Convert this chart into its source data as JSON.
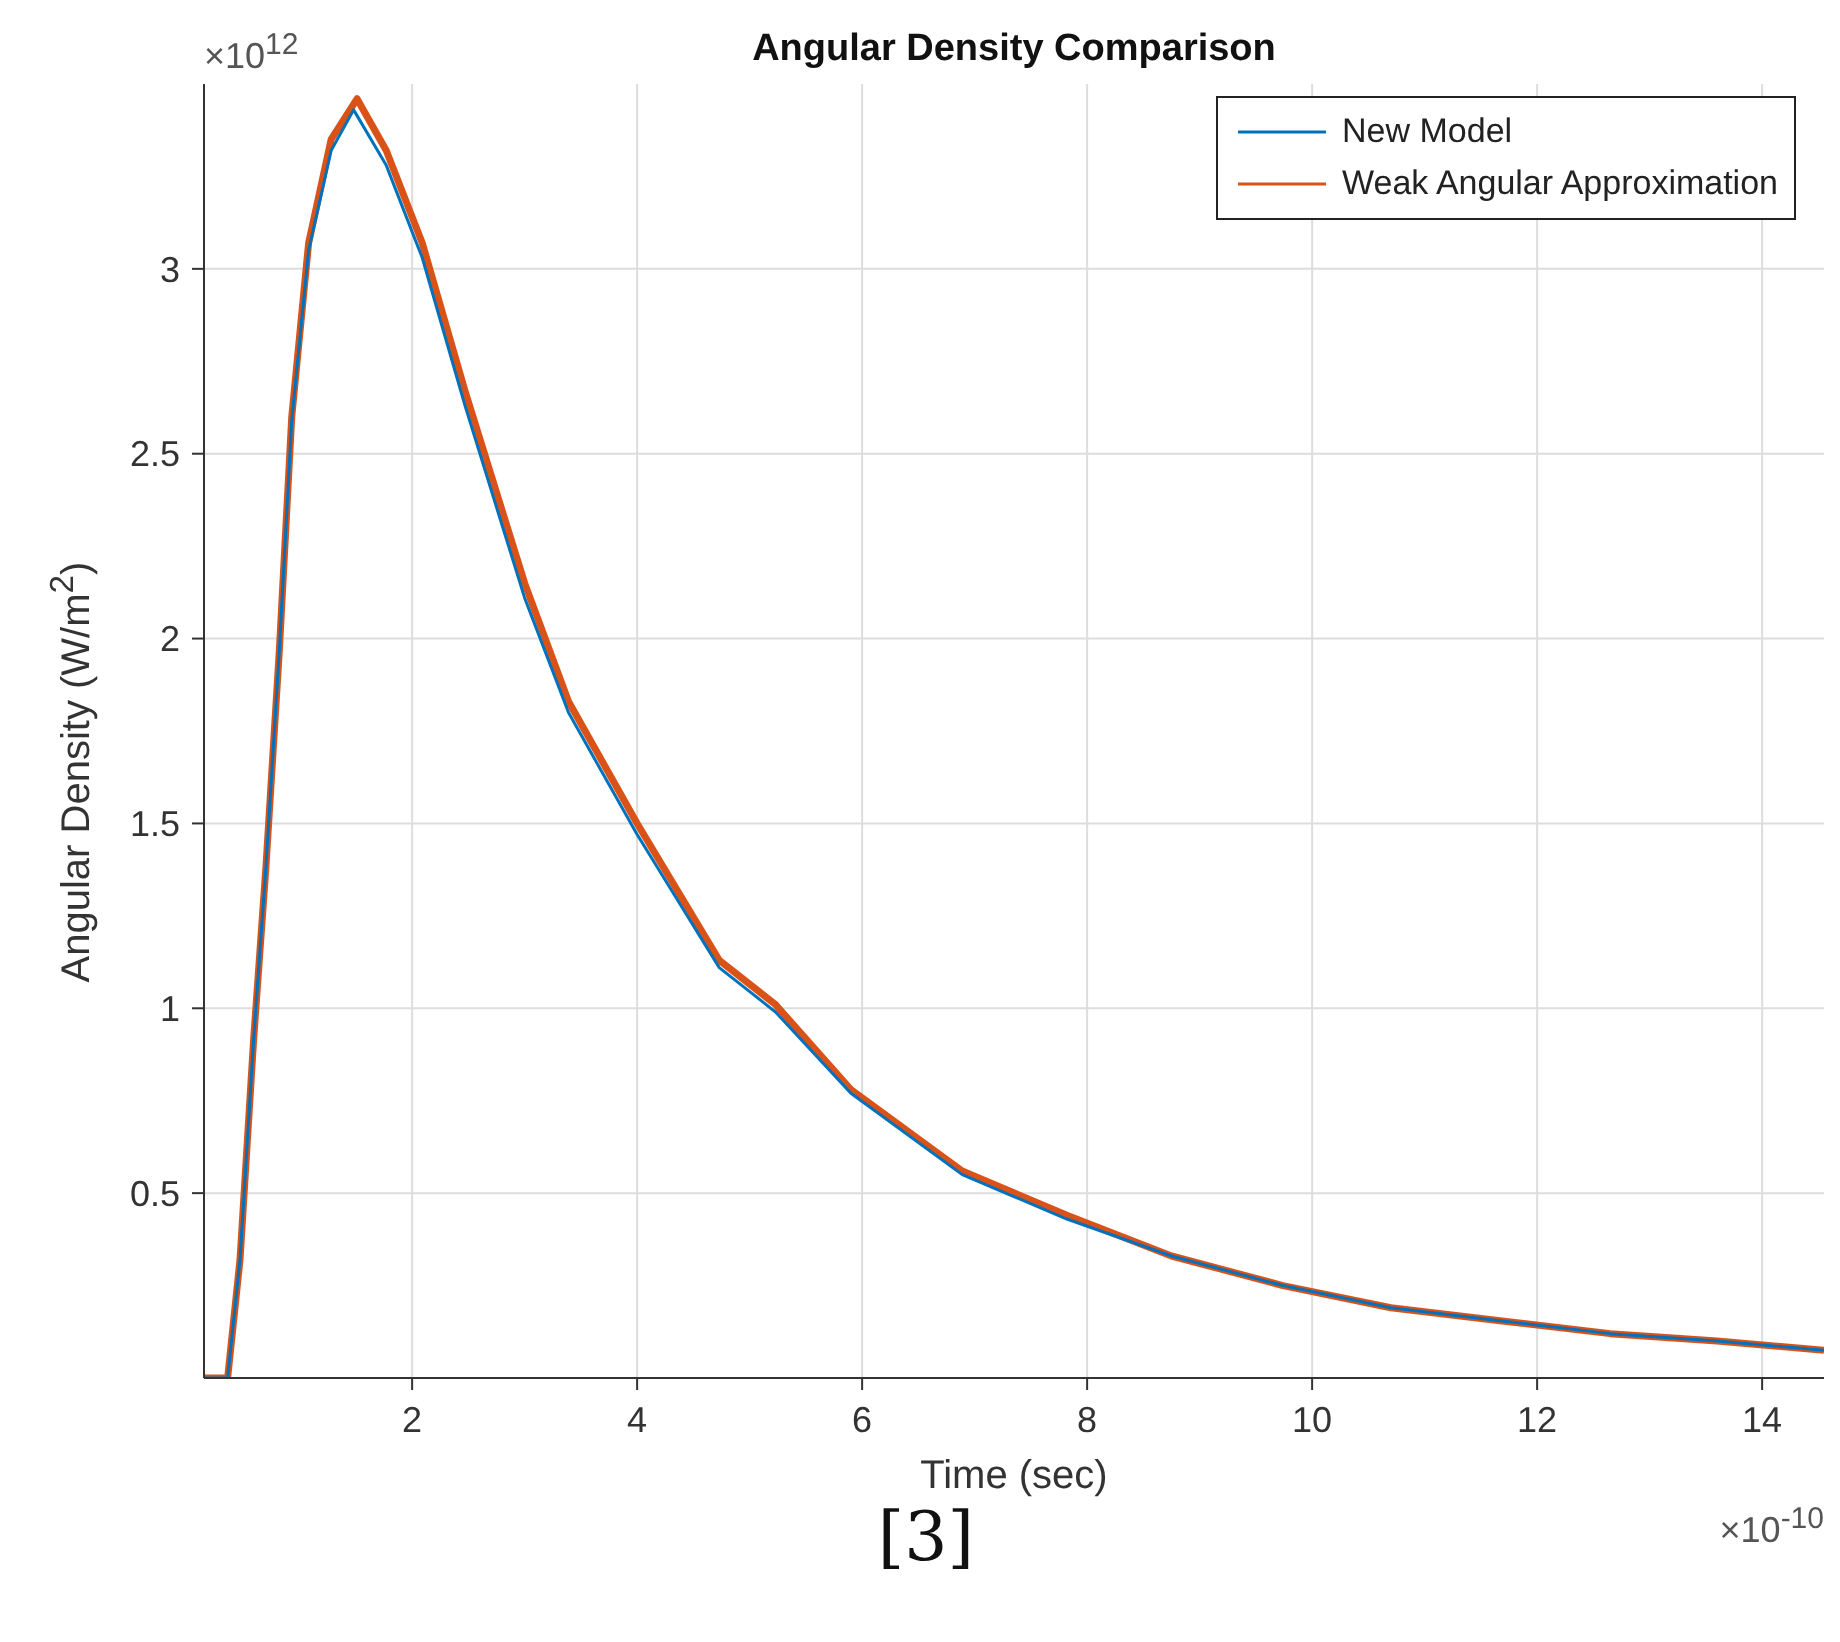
{
  "chart_data": {
    "type": "line",
    "title": "Angular Density Comparison",
    "xlabel": "Time (sec)",
    "ylabel": "Angular Density (W/m$^{2}$)",
    "annotations": [
      "×10$^{12}$",
      "×10$^{-10}$",
      "[3]"
    ],
    "xlim": [
      0.15,
      14.55
    ],
    "xticks": [
      2,
      4,
      6,
      8,
      10,
      12,
      14
    ],
    "ylim": [
      0,
      3.5
    ],
    "yticks": [
      0.5,
      1,
      1.5,
      2,
      2.5,
      3
    ],
    "grid": true,
    "legend": "top right",
    "line_style": "solid",
    "marker": "none",
    "series": [
      {
        "name": "New Model",
        "color": "#0072bd",
        "x": [
          0.15,
          0.36,
          0.47,
          0.59,
          0.7,
          0.82,
          0.93,
          1.08,
          1.28,
          1.48,
          1.77,
          2.09,
          2.47,
          3.0,
          3.39,
          4.0,
          4.73,
          5.23,
          5.9,
          6.89,
          7.82,
          8.75,
          9.74,
          10.7,
          11.67,
          12.65,
          13.6,
          14.55
        ],
        "values": [
          0,
          0,
          0.32,
          0.91,
          1.38,
          1.97,
          2.59,
          3.05,
          3.32,
          3.43,
          3.28,
          3.03,
          2.63,
          2.11,
          1.8,
          1.47,
          1.11,
          0.99,
          0.77,
          0.55,
          0.43,
          0.33,
          0.25,
          0.19,
          0.155,
          0.12,
          0.1,
          0.075
        ]
      },
      {
        "name": "Weak Angular Approximation",
        "color": "#d95319",
        "x": [
          0.15,
          0.36,
          0.47,
          0.59,
          0.7,
          0.82,
          0.93,
          1.08,
          1.28,
          1.51,
          1.77,
          2.09,
          2.47,
          3.0,
          3.39,
          4.0,
          4.73,
          5.23,
          5.9,
          6.89,
          7.82,
          8.75,
          9.74,
          10.7,
          11.67,
          12.65,
          13.6,
          14.55
        ],
        "values": [
          0,
          0,
          0.32,
          0.91,
          1.38,
          1.97,
          2.6,
          3.07,
          3.35,
          3.46,
          3.32,
          3.07,
          2.67,
          2.15,
          1.83,
          1.5,
          1.13,
          1.01,
          0.78,
          0.56,
          0.44,
          0.33,
          0.25,
          0.19,
          0.155,
          0.12,
          0.1,
          0.075
        ]
      }
    ]
  }
}
